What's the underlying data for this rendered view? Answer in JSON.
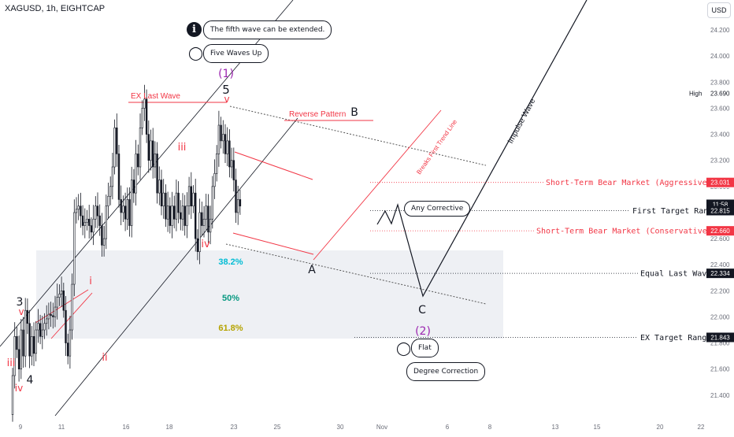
{
  "symbol": "XAGUSD, 1h, EIGHTCAP",
  "currency": "USD",
  "callouts": {
    "info_text": "The fifth wave can be extended.",
    "five_waves_up": "Five Waves Up",
    "any_corrective": "Any Corrective",
    "flat": "Flat",
    "degree_correction": "Degree Correction"
  },
  "colors": {
    "bull": "#131722",
    "red": "#f23645",
    "fib382": "#00bcd4",
    "fib50": "#089981",
    "fib618": "#b5a300",
    "purple": "#9c27b0",
    "grid": "#f0f3fa",
    "zone": "#eef0f4"
  },
  "chart_data": {
    "type": "candlestick",
    "symbol": "XAGUSD",
    "timeframe": "1h",
    "y_range": [
      21.23,
      24.43
    ],
    "y_ticks": [
      "21.400",
      "21.600",
      "21.800",
      "22.000",
      "22.200",
      "22.400",
      "22.600",
      "22.800",
      "23.000",
      "23.200",
      "23.400",
      "23.600",
      "23.800",
      "24.000",
      "24.200"
    ],
    "x_ticks": [
      "9",
      "11",
      "16",
      "18",
      "23",
      "25",
      "30",
      "Nov",
      "6",
      "8",
      "13",
      "15",
      "20",
      "22"
    ],
    "price_path": [
      [
        0,
        21.25
      ],
      [
        2,
        21.85
      ],
      [
        3,
        21.75
      ],
      [
        4,
        21.6
      ],
      [
        5,
        21.9
      ],
      [
        6,
        21.7
      ],
      [
        7,
        22.05
      ],
      [
        8,
        21.95
      ],
      [
        9,
        21.7
      ],
      [
        10,
        21.85
      ],
      [
        11,
        21.72
      ],
      [
        12,
        21.9
      ],
      [
        13,
        21.95
      ],
      [
        14,
        21.85
      ],
      [
        16,
        21.95
      ],
      [
        18,
        22.02
      ],
      [
        20,
        22.0
      ],
      [
        22,
        22.15
      ],
      [
        24,
        22.2
      ],
      [
        25,
        22.05
      ],
      [
        26,
        21.8
      ],
      [
        27,
        21.7
      ],
      [
        28,
        21.9
      ],
      [
        29,
        22.25
      ],
      [
        30,
        22.8
      ],
      [
        32,
        22.85
      ],
      [
        34,
        22.7
      ],
      [
        36,
        22.75
      ],
      [
        38,
        22.65
      ],
      [
        40,
        22.85
      ],
      [
        42,
        22.7
      ],
      [
        43,
        22.55
      ],
      [
        44,
        22.6
      ],
      [
        45,
        22.85
      ],
      [
        47,
        23.0
      ],
      [
        48,
        23.15
      ],
      [
        49,
        23.45
      ],
      [
        50,
        23.25
      ],
      [
        51,
        22.9
      ],
      [
        52,
        22.8
      ],
      [
        53,
        22.85
      ],
      [
        54,
        22.75
      ],
      [
        55,
        22.9
      ],
      [
        56,
        22.7
      ],
      [
        57,
        23.05
      ],
      [
        58,
        22.95
      ],
      [
        59,
        23.25
      ],
      [
        60,
        23.15
      ],
      [
        61,
        23.45
      ],
      [
        62,
        23.6
      ],
      [
        63,
        23.67
      ],
      [
        64,
        23.4
      ],
      [
        65,
        23.2
      ],
      [
        66,
        23.35
      ],
      [
        67,
        23.15
      ],
      [
        68,
        23.25
      ],
      [
        69,
        22.95
      ],
      [
        70,
        23.05
      ],
      [
        71,
        22.85
      ],
      [
        72,
        22.95
      ],
      [
        73,
        22.75
      ],
      [
        74,
        22.85
      ],
      [
        75,
        22.7
      ],
      [
        76,
        22.85
      ],
      [
        77,
        22.75
      ],
      [
        78,
        22.95
      ],
      [
        79,
        22.8
      ],
      [
        80,
        22.75
      ],
      [
        81,
        22.85
      ],
      [
        82,
        22.7
      ],
      [
        83,
        22.85
      ],
      [
        84,
        23.0
      ],
      [
        85,
        22.85
      ],
      [
        86,
        22.95
      ],
      [
        87,
        22.6
      ],
      [
        88,
        22.5
      ],
      [
        89,
        22.8
      ],
      [
        90,
        22.7
      ],
      [
        91,
        22.75
      ],
      [
        92,
        22.85
      ],
      [
        93,
        22.65
      ],
      [
        94,
        22.75
      ],
      [
        95,
        23.0
      ],
      [
        96,
        23.1
      ],
      [
        97,
        23.25
      ],
      [
        98,
        23.47
      ],
      [
        99,
        23.35
      ],
      [
        100,
        23.4
      ],
      [
        101,
        23.25
      ],
      [
        102,
        23.35
      ],
      [
        103,
        23.15
      ],
      [
        104,
        23.2
      ],
      [
        105,
        23.05
      ],
      [
        106,
        22.8
      ],
      [
        107,
        22.9
      ],
      [
        108,
        22.85
      ]
    ],
    "price_labels": [
      {
        "text": "High",
        "value": 23.69,
        "type": "plain"
      },
      {
        "text": "23.690",
        "value": 23.69,
        "type": "plain"
      },
      {
        "text": "23.031",
        "value": 23.031,
        "type": "red"
      },
      {
        "text": "11:58",
        "value": 22.88,
        "type": "dark"
      },
      {
        "text": "22.815",
        "value": 22.815,
        "type": "dark"
      },
      {
        "text": "22.660",
        "value": 22.66,
        "type": "red"
      },
      {
        "text": "22.334",
        "value": 22.334,
        "type": "dark"
      },
      {
        "text": "21.843",
        "value": 21.843,
        "type": "dark"
      }
    ],
    "levels": [
      {
        "label": "Short-Term Bear Market (Aggressive Idea)",
        "value": 23.031,
        "color": "red",
        "style": "dotted"
      },
      {
        "label": "First Target Range",
        "value": 22.815,
        "color": "dark",
        "style": "dotted"
      },
      {
        "label": "Short-Term Bear Market (Conservative IDEA)",
        "value": 22.66,
        "color": "red",
        "style": "dotted"
      },
      {
        "label": "Equal Last Wave",
        "value": 22.334,
        "color": "dark",
        "style": "dotted"
      },
      {
        "label": "EX Target Range",
        "value": 21.843,
        "color": "dark",
        "style": "dotted"
      }
    ],
    "fib_levels": [
      "38.2%",
      "50%",
      "61.8%"
    ],
    "wave_labels": [
      {
        "text": "3",
        "color": "dark"
      },
      {
        "text": "v",
        "color": "red"
      },
      {
        "text": "iii",
        "color": "red"
      },
      {
        "text": "iv",
        "color": "red"
      },
      {
        "text": "4",
        "color": "dark"
      },
      {
        "text": "i",
        "color": "red"
      },
      {
        "text": "ii",
        "color": "red"
      },
      {
        "text": "iii",
        "color": "red"
      },
      {
        "text": "iv",
        "color": "red"
      },
      {
        "text": "5",
        "color": "dark"
      },
      {
        "text": "v",
        "color": "red"
      },
      {
        "text": "(1)",
        "color": "purple"
      },
      {
        "text": "A",
        "color": "dark"
      },
      {
        "text": "B",
        "color": "dark"
      },
      {
        "text": "C",
        "color": "dark"
      },
      {
        "text": "(2)",
        "color": "purple"
      }
    ],
    "annotations": [
      "EX Last Wave",
      "Reverse Pattern",
      "Breaks First Trend Line",
      "Impulse Wave"
    ]
  }
}
